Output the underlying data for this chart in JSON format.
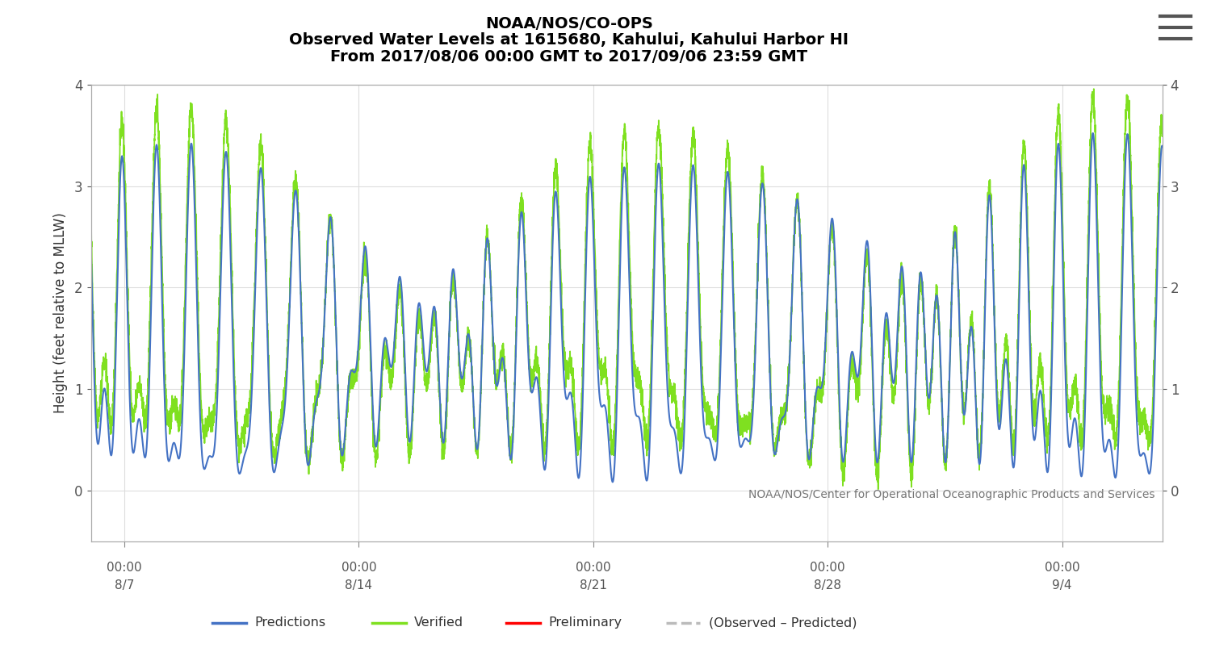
{
  "title_line1": "NOAA/NOS/CO-OPS",
  "title_line2": "Observed Water Levels at 1615680, Kahului, Kahului Harbor HI",
  "title_line3": "From 2017/08/06 00:00 GMT to 2017/09/06 23:59 GMT",
  "ylabel": "Height (feet relative to MLLW)",
  "ylim": [
    -0.5,
    4.0
  ],
  "yticks": [
    0.0,
    1.0,
    2.0,
    3.0,
    4.0
  ],
  "annotation": "NOAA/NOS/Center for Operational Oceanographic Products and Services",
  "blue_color": "#4472C4",
  "green_color": "#7FE020",
  "red_color": "#FF0000",
  "gray_color": "#BBBBBB",
  "bg_color": "#FFFFFF",
  "grid_color": "#DDDDDD",
  "title_fontsize": 14,
  "axis_fontsize": 12,
  "tick_fontsize": 12,
  "annotation_fontsize": 10,
  "hamburger_color": "#555555"
}
